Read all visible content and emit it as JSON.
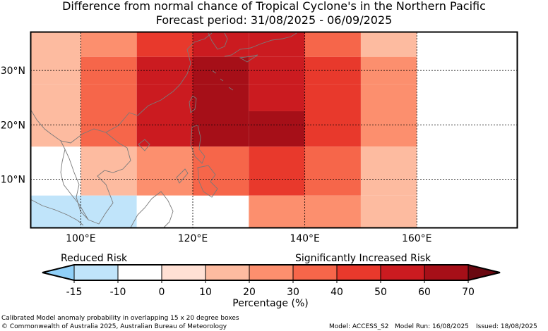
{
  "title": {
    "line1": "Difference from normal chance of Tropical Cyclone's in the Northern Pacific",
    "line2": "Forecast period: 31/08/2025 - 06/09/2025"
  },
  "map": {
    "lon_range": [
      91,
      178
    ],
    "lat_range": [
      1,
      37
    ],
    "lat_ticks": [
      {
        "value": 10,
        "label": "10°N"
      },
      {
        "value": 20,
        "label": "20°N"
      },
      {
        "value": 30,
        "label": "30°N"
      }
    ],
    "lon_ticks": [
      {
        "value": 100,
        "label": "100°E"
      },
      {
        "value": 120,
        "label": "120°E"
      },
      {
        "value": 140,
        "label": "140°E"
      },
      {
        "value": 160,
        "label": "160°E"
      }
    ],
    "grid": true,
    "cells": [
      {
        "lon": [
          90,
          100
        ],
        "lat": [
          27.5,
          37
        ],
        "pct": 10
      },
      {
        "lon": [
          100,
          110
        ],
        "lat": [
          32.5,
          37
        ],
        "pct": 20
      },
      {
        "lon": [
          110,
          120
        ],
        "lat": [
          32.5,
          37
        ],
        "pct": 40
      },
      {
        "lon": [
          120,
          130
        ],
        "lat": [
          32.5,
          37
        ],
        "pct": 50
      },
      {
        "lon": [
          130,
          140
        ],
        "lat": [
          32.5,
          37
        ],
        "pct": 50
      },
      {
        "lon": [
          140,
          150
        ],
        "lat": [
          32.5,
          37
        ],
        "pct": 30
      },
      {
        "lon": [
          150,
          160
        ],
        "lat": [
          32.5,
          37
        ],
        "pct": 10
      },
      {
        "lon": [
          100,
          110
        ],
        "lat": [
          27.5,
          32.5
        ],
        "pct": 30
      },
      {
        "lon": [
          110,
          120
        ],
        "lat": [
          27.5,
          32.5
        ],
        "pct": 50
      },
      {
        "lon": [
          120,
          130
        ],
        "lat": [
          27.5,
          32.5
        ],
        "pct": 60
      },
      {
        "lon": [
          130,
          140
        ],
        "lat": [
          27.5,
          32.5
        ],
        "pct": 50
      },
      {
        "lon": [
          140,
          150
        ],
        "lat": [
          27.5,
          32.5
        ],
        "pct": 40
      },
      {
        "lon": [
          150,
          160
        ],
        "lat": [
          27.5,
          32.5
        ],
        "pct": 20
      },
      {
        "lon": [
          90,
          100
        ],
        "lat": [
          16,
          27.5
        ],
        "pct": 10
      },
      {
        "lon": [
          100,
          110
        ],
        "lat": [
          16,
          27.5
        ],
        "pct": 30
      },
      {
        "lon": [
          110,
          120
        ],
        "lat": [
          16,
          27.5
        ],
        "pct": 50
      },
      {
        "lon": [
          120,
          130
        ],
        "lat": [
          16,
          27.5
        ],
        "pct": 60
      },
      {
        "lon": [
          130,
          140
        ],
        "lat": [
          22.5,
          27.5
        ],
        "pct": 50
      },
      {
        "lon": [
          130,
          140
        ],
        "lat": [
          16,
          22.5
        ],
        "pct": 60
      },
      {
        "lon": [
          140,
          150
        ],
        "lat": [
          16,
          27.5
        ],
        "pct": 40
      },
      {
        "lon": [
          150,
          160
        ],
        "lat": [
          16,
          27.5
        ],
        "pct": 20
      },
      {
        "lon": [
          170,
          178
        ],
        "lat": [
          7,
          32.5
        ],
        "pct": -10
      },
      {
        "lon": [
          100,
          110
        ],
        "lat": [
          7,
          16
        ],
        "pct": 10
      },
      {
        "lon": [
          110,
          120
        ],
        "lat": [
          7,
          16
        ],
        "pct": 20
      },
      {
        "lon": [
          120,
          130
        ],
        "lat": [
          7,
          16
        ],
        "pct": 30
      },
      {
        "lon": [
          130,
          140
        ],
        "lat": [
          7,
          16
        ],
        "pct": 40
      },
      {
        "lon": [
          140,
          150
        ],
        "lat": [
          7,
          16
        ],
        "pct": 30
      },
      {
        "lon": [
          150,
          160
        ],
        "lat": [
          7,
          16
        ],
        "pct": 10
      },
      {
        "lon": [
          90,
          110
        ],
        "lat": [
          1,
          7
        ],
        "pct": -15
      },
      {
        "lon": [
          110,
          120
        ],
        "lat": [
          1,
          7
        ],
        "pct": -10
      },
      {
        "lon": [
          130,
          150
        ],
        "lat": [
          1,
          7
        ],
        "pct": 20
      },
      {
        "lon": [
          150,
          160
        ],
        "lat": [
          1,
          7
        ],
        "pct": 10
      }
    ]
  },
  "colorbar": {
    "left_label": "Reduced Risk",
    "right_label": "Significantly Increased Risk",
    "xlabel": "Percentage (%)",
    "ticks": [
      "-15",
      "-10",
      "0",
      "10",
      "20",
      "30",
      "40",
      "50",
      "60",
      "70"
    ],
    "under_color": "#90d0f8",
    "colors": [
      "#c0e4fa",
      "#ffffff",
      "#ffe0d4",
      "#fdbba0",
      "#fc8f6e",
      "#f6664a",
      "#e8392c",
      "#cb1b20",
      "#a60f18"
    ],
    "over_color": "#6a0810"
  },
  "footer": {
    "note": "Calibrated Model anomaly probability in overlapping 15 x 20 degree boxes",
    "copyright": "© Commonwealth of Australia 2025, Australian Bureau of Meteorology",
    "model": "Model: ACCESS_S2",
    "model_run": "Model Run: 16/08/2025",
    "issued": "Issued: 18/08/2025"
  }
}
